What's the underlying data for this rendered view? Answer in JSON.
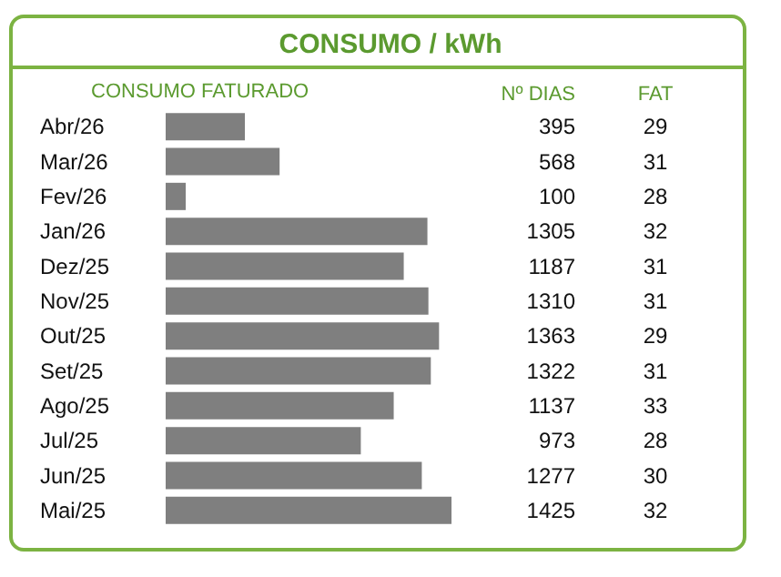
{
  "chart_data": {
    "type": "bar",
    "orientation": "horizontal",
    "title": "CONSUMO / kWh",
    "xlabel": "CONSUMO FATURADO",
    "categories": [
      "Abr/26",
      "Mar/26",
      "Fev/26",
      "Jan/26",
      "Dez/25",
      "Nov/25",
      "Out/25",
      "Set/25",
      "Ago/25",
      "Jul/25",
      "Jun/25",
      "Mai/25"
    ],
    "values": [
      395,
      568,
      100,
      1305,
      1187,
      1310,
      1363,
      1322,
      1137,
      973,
      1277,
      1425
    ],
    "color": "#7f7f7f",
    "data_labels": true,
    "annotations": [
      "Nº DIAS",
      "FAT",
      "29",
      "31",
      "28",
      "32",
      "31",
      "31",
      "29",
      "31",
      "33",
      "28",
      "30",
      "32"
    ]
  }
}
